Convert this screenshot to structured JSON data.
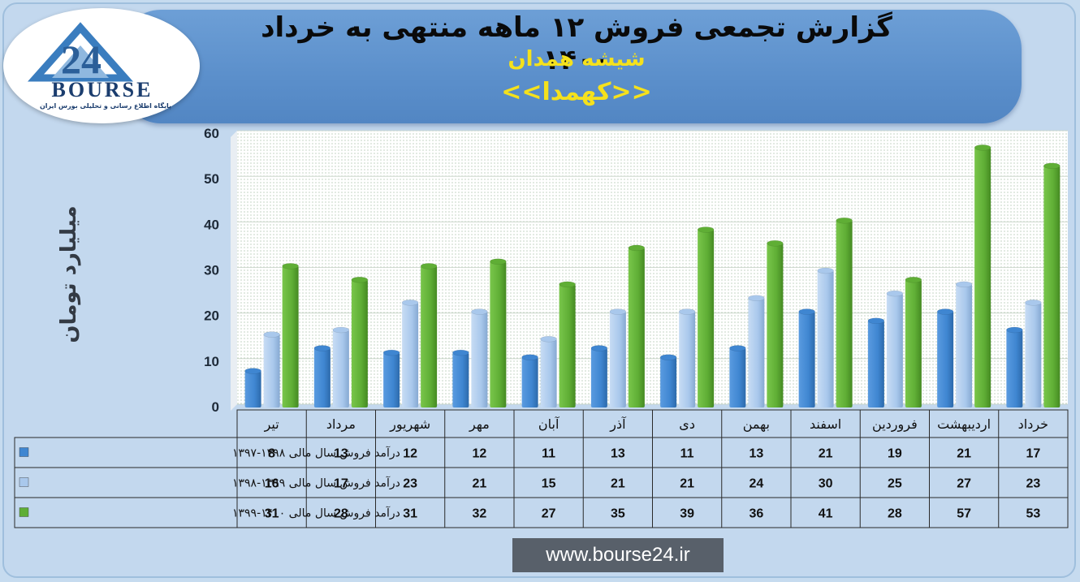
{
  "header": {
    "title": "گزارش تجمعی فروش ۱۲ ماهه منتهی به خرداد ۱۴۰۰",
    "subtitle": "شیشه همدان",
    "ticker": "<<کهمدا>>"
  },
  "logo": {
    "brand": "BOURSE",
    "number": "24",
    "tagline": "پایگاه اطلاع رسانی و تحلیلی بورس ایران"
  },
  "footer": {
    "url": "www.bourse24.ir"
  },
  "colors": {
    "series1": "#3f86d1",
    "series2": "#a9c8ec",
    "series3": "#5fae35",
    "header": "#5b8fcb",
    "title": "#0a0a0a",
    "subtitle": "#f5e11c"
  },
  "chart_data": {
    "type": "bar",
    "ylabel": "میلیارد تومان",
    "ylim": [
      0,
      60
    ],
    "yticks": [
      0,
      10,
      20,
      30,
      40,
      50,
      60
    ],
    "grid": true,
    "categories": [
      "تیر",
      "مرداد",
      "شهریور",
      "مهر",
      "آبان",
      "آذر",
      "دی",
      "بهمن",
      "اسفند",
      "فروردین",
      "اردیبهشت",
      "خرداد"
    ],
    "series": [
      {
        "name": "درآمد فروش سال مالی ۱۳۹۸-۱۳۹۷",
        "color": "#3f86d1",
        "values": [
          8,
          13,
          12,
          12,
          11,
          13,
          11,
          13,
          21,
          19,
          21,
          17
        ]
      },
      {
        "name": "درآمد فروش سال مالی ۱۳۹۹-۱۳۹۸",
        "color": "#a9c8ec",
        "values": [
          16,
          17,
          23,
          21,
          15,
          21,
          21,
          24,
          30,
          25,
          27,
          23
        ]
      },
      {
        "name": "درآمد فروش سال مالی ۱۴۰۰-۱۳۹۹",
        "color": "#5fae35",
        "values": [
          31,
          28,
          31,
          32,
          27,
          35,
          39,
          36,
          41,
          28,
          57,
          53
        ]
      }
    ]
  }
}
